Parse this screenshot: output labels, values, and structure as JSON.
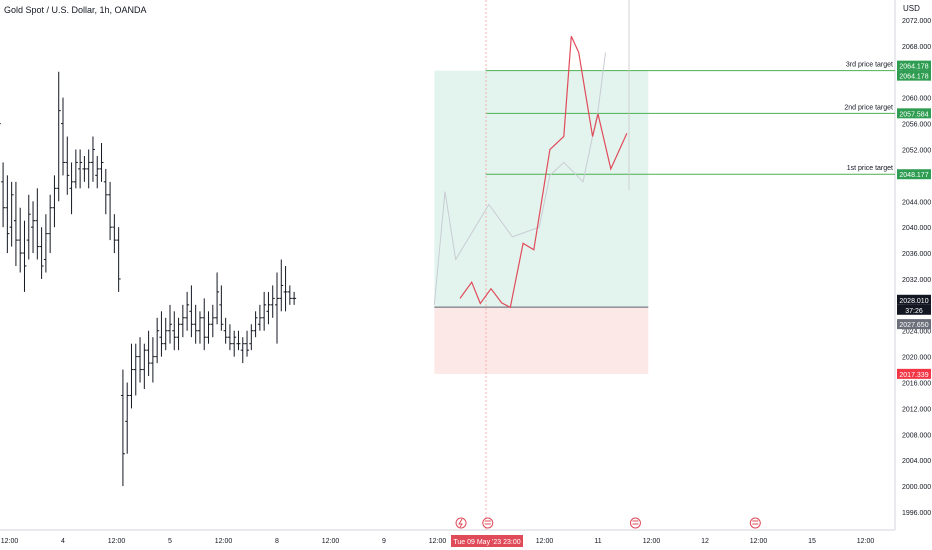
{
  "header": {
    "title": "Gold Spot / U.S. Dollar, 1h, OANDA",
    "currency": "USD"
  },
  "chart_data": {
    "type": "candlestick",
    "title": "Gold Spot / U.S. Dollar, 1h, OANDA",
    "ylim": [
      1994,
      2073
    ],
    "y_ticks": [
      "2072.000",
      "2068.000",
      "2064.000",
      "2060.000",
      "2056.000",
      "2052.000",
      "2048.000",
      "2044.000",
      "2040.000",
      "2036.000",
      "2032.000",
      "2028.000",
      "2024.000",
      "2020.000",
      "2016.000",
      "2012.000",
      "2008.000",
      "2004.000",
      "2000.000",
      "1996.000"
    ],
    "x_labels": [
      {
        "text": "12:00",
        "x": 0.5
      },
      {
        "text": "4",
        "x": 1
      },
      {
        "text": "12:00",
        "x": 1.5
      },
      {
        "text": "5",
        "x": 2
      },
      {
        "text": "12:00",
        "x": 2.5
      },
      {
        "text": "8",
        "x": 3
      },
      {
        "text": "12:00",
        "x": 3.5
      },
      {
        "text": "9",
        "x": 4
      },
      {
        "text": "12:00",
        "x": 4.5
      },
      {
        "text": "12:00",
        "x": 5.5
      },
      {
        "text": "11",
        "x": 6
      },
      {
        "text": "12:00",
        "x": 6.5
      },
      {
        "text": "12",
        "x": 7
      },
      {
        "text": "12:00",
        "x": 7.5
      },
      {
        "text": "15",
        "x": 8
      },
      {
        "text": "12:00",
        "x": 8.5
      }
    ],
    "crosshair_label": "Tue 09 May '23   23:00",
    "price_badges": [
      {
        "text": "2064.178",
        "price": 2064.178,
        "color": "#2e9d52"
      },
      {
        "text": "2064.178",
        "price": 2064.178,
        "color": "#2e9d52"
      },
      {
        "text": "2057.584",
        "price": 2057.584,
        "color": "#2e9d52"
      },
      {
        "text": "2048.177",
        "price": 2048.177,
        "color": "#2e9d52"
      },
      {
        "text": "2028.010",
        "price": 2028.01,
        "color": "#131722"
      },
      {
        "text": "37:26",
        "price": 2028.01,
        "color": "#131722"
      },
      {
        "text": "2027.650",
        "price": 2027.65,
        "color": "#6b6f7a"
      },
      {
        "text": "2017.339",
        "price": 2017.339,
        "color": "#f23645"
      }
    ],
    "targets": [
      {
        "label": "3rd price target",
        "price": 2064.178
      },
      {
        "label": "2nd price target",
        "price": 2057.584
      },
      {
        "label": "1st price target",
        "price": 2048.177
      }
    ],
    "position": {
      "entry": 2027.65,
      "target": 2064.178,
      "stop": 2017.339,
      "x_start": 4.47,
      "x_end": 6.47
    },
    "projection_red": [
      [
        4.71,
        2029.0
      ],
      [
        4.82,
        2031.5
      ],
      [
        4.9,
        2028.2
      ],
      [
        5.0,
        2030.5
      ],
      [
        5.1,
        2028.3
      ],
      [
        5.18,
        2027.6
      ],
      [
        5.3,
        2037.5
      ],
      [
        5.4,
        2036.5
      ],
      [
        5.55,
        2052.0
      ],
      [
        5.68,
        2054.0
      ],
      [
        5.75,
        2069.5
      ],
      [
        5.82,
        2067.0
      ],
      [
        5.95,
        2054.0
      ],
      [
        6.0,
        2057.5
      ],
      [
        6.12,
        2049.0
      ],
      [
        6.27,
        2054.5
      ]
    ],
    "projection_gray": [
      [
        4.47,
        2028.0
      ],
      [
        4.57,
        2045.5
      ],
      [
        4.67,
        2035.0
      ],
      [
        4.98,
        2043.5
      ],
      [
        5.2,
        2038.5
      ],
      [
        5.45,
        2040.0
      ],
      [
        5.55,
        2048.0
      ],
      [
        5.68,
        2050.0
      ],
      [
        5.86,
        2047.0
      ],
      [
        6.0,
        2058.0
      ],
      [
        6.07,
        2067.0
      ]
    ],
    "candles": [
      [
        0.0,
        2022.5,
        2024.5,
        2014.0,
        2018.0
      ],
      [
        0.04,
        2023.0,
        2027.0,
        2019.0,
        2022.0
      ],
      [
        0.08,
        2024.0,
        2028.0,
        2022.0,
        2026.0
      ],
      [
        0.12,
        2025.0,
        2029.0,
        2021.0,
        2024.0
      ],
      [
        0.16,
        2024.0,
        2031.0,
        2020.0,
        2029.0
      ],
      [
        0.2,
        2029.0,
        2034.0,
        2026.0,
        2032.0
      ],
      [
        0.24,
        2032.0,
        2038.0,
        2028.0,
        2036.0
      ],
      [
        0.28,
        2034.0,
        2040.0,
        2031.0,
        2039.0
      ],
      [
        0.32,
        2039.0,
        2068.0,
        2038.0,
        2058.0
      ],
      [
        0.36,
        2055.0,
        2062.0,
        2048.0,
        2052.0
      ],
      [
        0.4,
        2052.0,
        2058.0,
        2045.0,
        2056.0
      ],
      [
        0.44,
        2047.0,
        2050.0,
        2040.0,
        2043.0
      ],
      [
        0.48,
        2043.0,
        2048.0,
        2036.0,
        2039.0
      ],
      [
        0.52,
        2040.0,
        2047.0,
        2037.0,
        2045.0
      ],
      [
        0.56,
        2041.0,
        2047.0,
        2034.0,
        2038.0
      ],
      [
        0.6,
        2038.0,
        2043.0,
        2033.0,
        2036.0
      ],
      [
        0.64,
        2036.0,
        2041.0,
        2030.0,
        2034.0
      ],
      [
        0.68,
        2038.0,
        2045.0,
        2035.0,
        2042.0
      ],
      [
        0.72,
        2040.0,
        2044.0,
        2036.0,
        2041.0
      ],
      [
        0.76,
        2041.0,
        2046.0,
        2035.0,
        2037.0
      ],
      [
        0.8,
        2037.0,
        2040.0,
        2032.0,
        2034.0
      ],
      [
        0.84,
        2035.0,
        2042.0,
        2033.0,
        2039.0
      ],
      [
        0.88,
        2039.0,
        2045.0,
        2036.0,
        2043.0
      ],
      [
        0.92,
        2043.0,
        2048.0,
        2040.0,
        2046.0
      ],
      [
        0.96,
        2046.0,
        2064.0,
        2044.0,
        2058.0
      ],
      [
        1.0,
        2056.0,
        2060.0,
        2048.0,
        2050.0
      ],
      [
        1.04,
        2050.0,
        2054.0,
        2045.0,
        2048.0
      ],
      [
        1.08,
        2046.0,
        2050.0,
        2042.0,
        2047.0
      ],
      [
        1.12,
        2047.0,
        2052.0,
        2046.0,
        2050.0
      ],
      [
        1.16,
        2049.0,
        2052.0,
        2046.0,
        2050.0
      ],
      [
        1.2,
        2049.0,
        2051.0,
        2047.0,
        2049.0
      ],
      [
        1.24,
        2049.0,
        2052.0,
        2046.0,
        2050.0
      ],
      [
        1.28,
        2050.0,
        2054.0,
        2047.0,
        2052.0
      ],
      [
        1.32,
        2048.0,
        2051.0,
        2046.0,
        2049.0
      ],
      [
        1.36,
        2049.0,
        2053.0,
        2047.0,
        2050.0
      ],
      [
        1.4,
        2047.0,
        2049.0,
        2042.0,
        2045.0
      ],
      [
        1.44,
        2045.0,
        2047.0,
        2038.0,
        2040.0
      ],
      [
        1.48,
        2040.0,
        2042.0,
        2036.0,
        2038.0
      ],
      [
        1.52,
        2038.0,
        2040.0,
        2030.0,
        2032.0
      ],
      [
        1.56,
        2014.0,
        2018.0,
        2000.0,
        2005.0
      ],
      [
        1.6,
        2010.0,
        2016.0,
        2005.0,
        2014.0
      ],
      [
        1.64,
        2014.0,
        2022.0,
        2012.0,
        2018.0
      ],
      [
        1.68,
        2018.0,
        2022.0,
        2014.0,
        2020.0
      ],
      [
        1.72,
        2020.0,
        2023.0,
        2016.0,
        2018.0
      ],
      [
        1.76,
        2018.0,
        2022.0,
        2015.0,
        2021.0
      ],
      [
        1.8,
        2021.0,
        2024.0,
        2017.0,
        2019.0
      ],
      [
        1.84,
        2019.0,
        2023.0,
        2016.0,
        2020.0
      ],
      [
        1.88,
        2020.0,
        2026.0,
        2019.0,
        2024.0
      ],
      [
        1.92,
        2023.0,
        2027.0,
        2020.0,
        2022.0
      ],
      [
        1.96,
        2022.0,
        2026.0,
        2021.0,
        2024.0
      ],
      [
        2.0,
        2024.0,
        2028.0,
        2022.0,
        2025.0
      ],
      [
        2.04,
        2024.0,
        2027.0,
        2021.0,
        2023.0
      ],
      [
        2.08,
        2023.0,
        2026.0,
        2021.0,
        2025.0
      ],
      [
        2.12,
        2025.0,
        2028.0,
        2023.0,
        2026.0
      ],
      [
        2.16,
        2026.0,
        2030.0,
        2024.0,
        2028.0
      ],
      [
        2.2,
        2027.0,
        2031.0,
        2023.0,
        2025.0
      ],
      [
        2.24,
        2025.0,
        2028.0,
        2022.0,
        2024.0
      ],
      [
        2.28,
        2024.0,
        2027.0,
        2022.0,
        2026.0
      ],
      [
        2.32,
        2026.0,
        2029.0,
        2021.0,
        2023.0
      ],
      [
        2.36,
        2023.0,
        2027.0,
        2022.0,
        2025.0
      ],
      [
        2.4,
        2025.0,
        2028.0,
        2023.0,
        2026.0
      ],
      [
        2.44,
        2026.0,
        2033.0,
        2025.0,
        2030.0
      ],
      [
        2.48,
        2028.0,
        2031.0,
        2024.0,
        2025.0
      ],
      [
        2.52,
        2024.0,
        2026.0,
        2022.0,
        2023.0
      ],
      [
        2.56,
        2023.0,
        2025.0,
        2021.0,
        2022.0
      ],
      [
        2.6,
        2022.0,
        2024.0,
        2020.0,
        2023.0
      ],
      [
        2.64,
        2022.0,
        2024.0,
        2021.0,
        2022.0
      ],
      [
        2.68,
        2021.0,
        2023.0,
        2019.0,
        2022.0
      ],
      [
        2.72,
        2022.0,
        2024.0,
        2020.0,
        2021.0
      ],
      [
        2.76,
        2022.0,
        2025.0,
        2021.0,
        2024.0
      ],
      [
        2.8,
        2024.0,
        2027.0,
        2023.0,
        2026.0
      ],
      [
        2.84,
        2025.0,
        2028.0,
        2024.0,
        2026.0
      ],
      [
        2.88,
        2026.0,
        2030.0,
        2024.0,
        2028.0
      ],
      [
        2.92,
        2027.0,
        2030.0,
        2025.0,
        2028.0
      ],
      [
        2.96,
        2028.0,
        2031.0,
        2026.0,
        2029.0
      ],
      [
        3.0,
        2028.0,
        2033.0,
        2022.0,
        2029.0
      ],
      [
        3.04,
        2029.0,
        2035.0,
        2027.0,
        2031.0
      ],
      [
        3.08,
        2030.0,
        2034.0,
        2027.0,
        2030.0
      ],
      [
        3.12,
        2030.0,
        2031.0,
        2028.0,
        2029.0
      ],
      [
        3.16,
        2029.0,
        2030.0,
        2028.0,
        2029.0
      ]
    ],
    "events": [
      {
        "icon": "flash-icon",
        "x": 4.72
      },
      {
        "icon": "us-flag-icon",
        "x": 4.97
      },
      {
        "icon": "us-flag-icon",
        "x": 6.35
      },
      {
        "icon": "us-flag-icon",
        "x": 7.47
      }
    ]
  }
}
